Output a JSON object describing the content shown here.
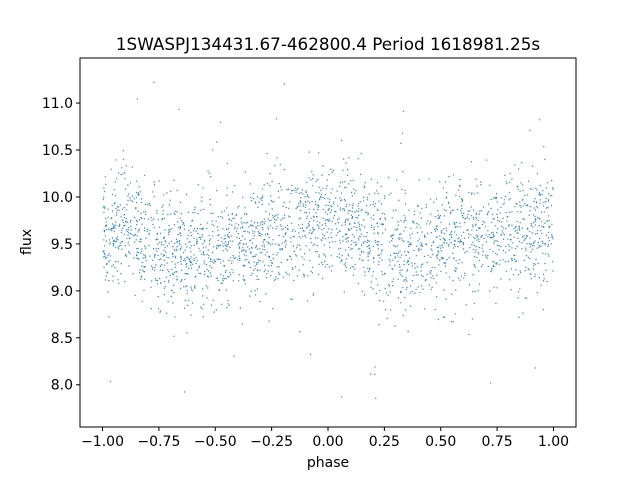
{
  "chart_data": {
    "type": "scatter",
    "title": "1SWASPJ134431.67-462800.4 Period 1618981.25s",
    "xlabel": "phase",
    "ylabel": "flux",
    "xlim": [
      -1.1,
      1.1
    ],
    "ylim": [
      7.55,
      11.48
    ],
    "xticks": [
      -1.0,
      -0.75,
      -0.5,
      -0.25,
      0.0,
      0.25,
      0.5,
      0.75,
      1.0
    ],
    "xtick_labels": [
      "−1.00",
      "−0.75",
      "−0.50",
      "−0.25",
      "0.00",
      "0.25",
      "0.50",
      "0.75",
      "1.00"
    ],
    "yticks": [
      8.0,
      8.5,
      9.0,
      9.5,
      10.0,
      10.5,
      11.0
    ],
    "ytick_labels": [
      "8.0",
      "8.5",
      "9.0",
      "9.5",
      "10.0",
      "10.5",
      "11.0"
    ],
    "grid": false,
    "marker_color": "#1f77b4",
    "series": [
      {
        "point_count": 2500,
        "x_range": [
          -1.0,
          1.0
        ],
        "mean_flux_profile": [
          {
            "x": -1.0,
            "y": 9.6
          },
          {
            "x": -0.9,
            "y": 9.7
          },
          {
            "x": -0.75,
            "y": 9.45
          },
          {
            "x": -0.6,
            "y": 9.4
          },
          {
            "x": -0.5,
            "y": 9.45
          },
          {
            "x": -0.35,
            "y": 9.55
          },
          {
            "x": -0.2,
            "y": 9.6
          },
          {
            "x": -0.05,
            "y": 9.7
          },
          {
            "x": 0.0,
            "y": 9.7
          },
          {
            "x": 0.1,
            "y": 9.65
          },
          {
            "x": 0.25,
            "y": 9.45
          },
          {
            "x": 0.4,
            "y": 9.4
          },
          {
            "x": 0.5,
            "y": 9.45
          },
          {
            "x": 0.65,
            "y": 9.55
          },
          {
            "x": 0.8,
            "y": 9.6
          },
          {
            "x": 0.95,
            "y": 9.7
          },
          {
            "x": 1.0,
            "y": 9.65
          }
        ],
        "scatter_std": 0.32,
        "outlier_range": [
          7.7,
          11.3
        ]
      }
    ]
  }
}
